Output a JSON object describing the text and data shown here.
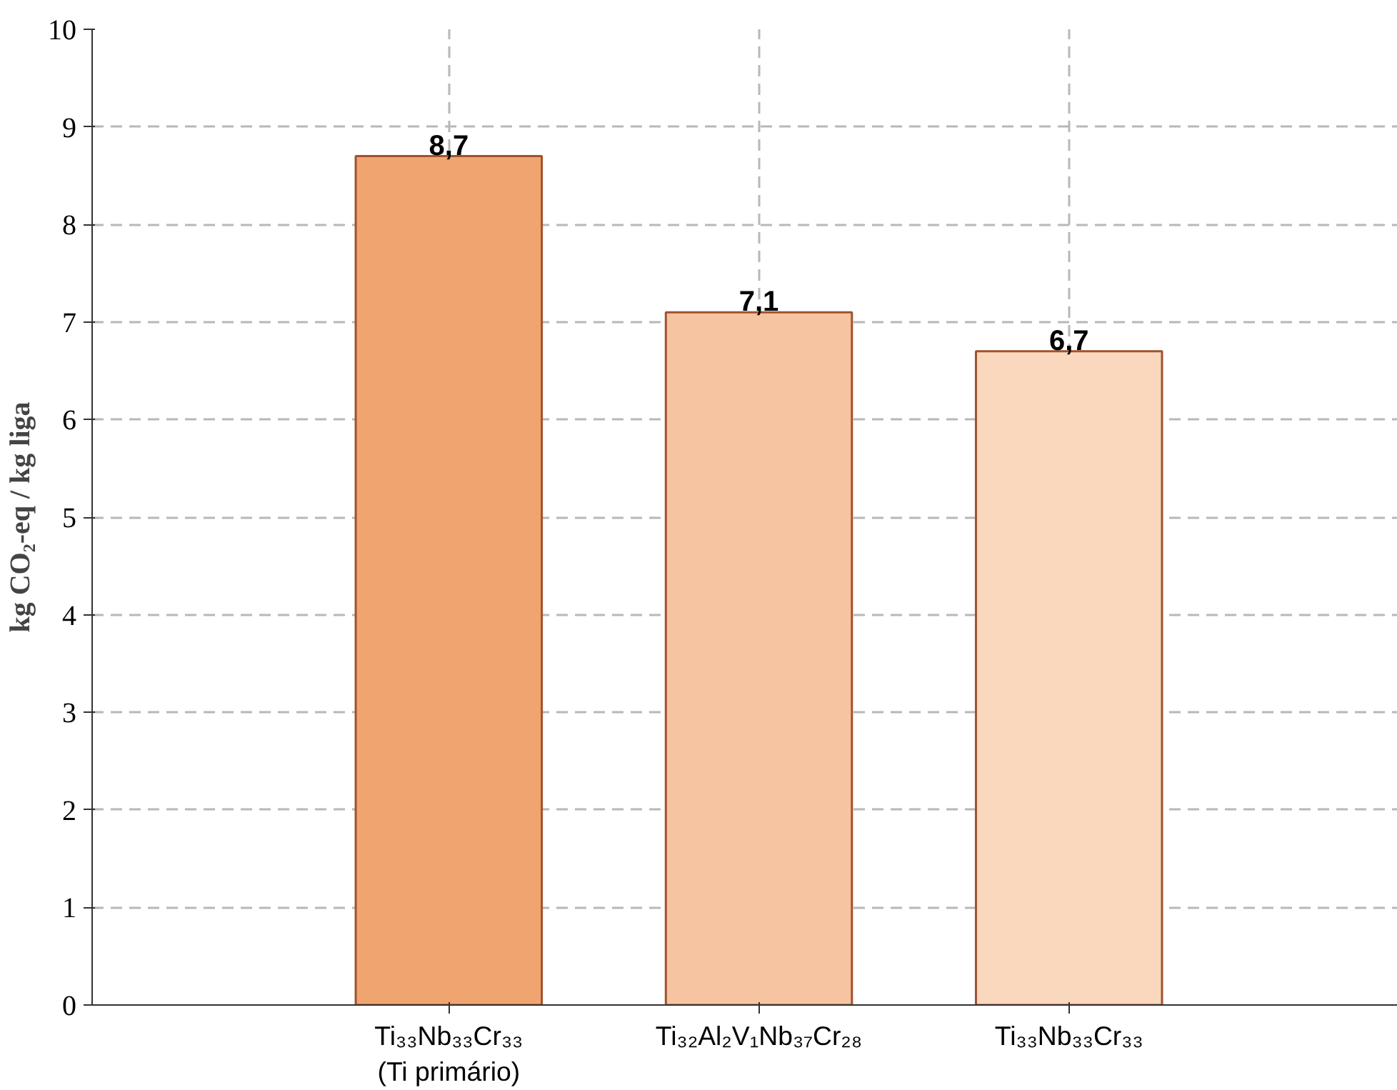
{
  "chart_data": {
    "type": "bar",
    "ylabel": "kg CO₂-eq / kg liga",
    "categories": [
      "Ti₃₃Nb₃₃Cr₃₃\n(Ti primário)",
      "Ti₃₂Al₂V₁Nb₃₇Cr₂₈",
      "Ti₃₃Nb₃₃Cr₃₃"
    ],
    "values": [
      8.7,
      7.1,
      6.7
    ],
    "colors": [
      "#f0a571",
      "#f6c4a0",
      "#fad8bd"
    ],
    "value_labels": [
      "8,7",
      "7,1",
      "6,7"
    ],
    "ylim": [
      0,
      10
    ],
    "yticks": [
      0,
      1,
      2,
      3,
      4,
      5,
      6,
      7,
      8,
      9,
      10
    ],
    "grid": true
  }
}
